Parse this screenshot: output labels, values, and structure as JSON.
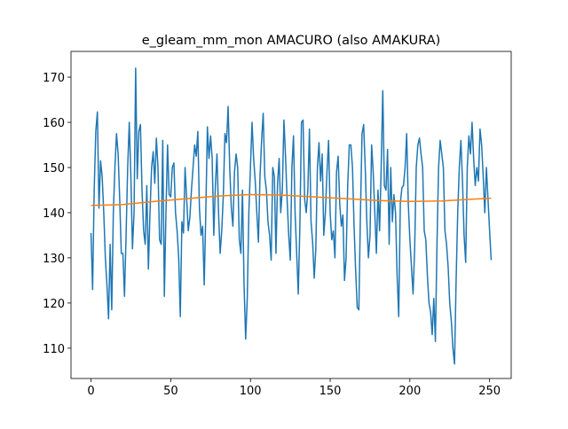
{
  "chart_data": {
    "type": "line",
    "title": "e_gleam_mm_mon AMACURO (also AMAKURA)",
    "xlim": [
      -12.55,
      263.55
    ],
    "ylim": [
      103.3,
      175.7
    ],
    "xticks": [
      0,
      50,
      100,
      150,
      200,
      250
    ],
    "yticks": [
      110,
      120,
      130,
      140,
      150,
      160,
      170
    ],
    "series": [
      {
        "color": "#1f77b4",
        "x": [
          0,
          1,
          2,
          3,
          4,
          5,
          6,
          7,
          8,
          9,
          10,
          11,
          12,
          13,
          14,
          15,
          16,
          17,
          18,
          19,
          20,
          21,
          22,
          23,
          24,
          25,
          26,
          27,
          28,
          29,
          30,
          31,
          32,
          33,
          34,
          35,
          36,
          37,
          38,
          39,
          40,
          41,
          42,
          43,
          44,
          45,
          46,
          47,
          48,
          49,
          50,
          51,
          52,
          53,
          54,
          55,
          56,
          57,
          58,
          59,
          60,
          61,
          62,
          63,
          64,
          65,
          66,
          67,
          68,
          69,
          70,
          71,
          72,
          73,
          74,
          75,
          76,
          77,
          78,
          79,
          80,
          81,
          82,
          83,
          84,
          85,
          86,
          87,
          88,
          89,
          90,
          91,
          92,
          93,
          94,
          95,
          96,
          97,
          98,
          99,
          100,
          101,
          102,
          103,
          104,
          105,
          106,
          107,
          108,
          109,
          110,
          111,
          112,
          113,
          114,
          115,
          116,
          117,
          118,
          119,
          120,
          121,
          122,
          123,
          124,
          125,
          126,
          127,
          128,
          129,
          130,
          131,
          132,
          133,
          134,
          135,
          136,
          137,
          138,
          139,
          140,
          141,
          142,
          143,
          144,
          145,
          146,
          147,
          148,
          149,
          150,
          151,
          152,
          153,
          154,
          155,
          156,
          157,
          158,
          159,
          160,
          161,
          162,
          163,
          164,
          165,
          166,
          167,
          168,
          169,
          170,
          171,
          172,
          173,
          174,
          175,
          176,
          177,
          178,
          179,
          180,
          181,
          182,
          183,
          184,
          185,
          186,
          187,
          188,
          189,
          190,
          191,
          192,
          193,
          194,
          195,
          196,
          197,
          198,
          199,
          200,
          201,
          202,
          203,
          204,
          205,
          206,
          207,
          208,
          209,
          210,
          211,
          212,
          213,
          214,
          215,
          216,
          217,
          218,
          219,
          220,
          221,
          222,
          223,
          224,
          225,
          226,
          227,
          228,
          229,
          230,
          231,
          232,
          233,
          234,
          235,
          236,
          237,
          238,
          239,
          240,
          241,
          242,
          243,
          244,
          245,
          246,
          247,
          248,
          249,
          250,
          251
        ],
        "values": [
          135.5,
          123,
          145,
          158,
          162.3,
          141,
          151.5,
          148,
          140,
          130,
          124,
          116.5,
          133,
          118.5,
          140,
          150,
          157.5,
          153,
          143,
          131,
          131,
          121.5,
          135,
          150,
          160,
          148,
          132,
          140,
          172,
          147.5,
          158,
          159.5,
          145,
          136,
          133,
          146,
          127.5,
          140,
          150,
          153.5,
          146.5,
          156.5,
          150,
          134,
          133,
          156,
          121.5,
          140,
          155,
          144,
          143.5,
          150,
          151,
          140,
          136,
          130,
          117,
          138,
          135.5,
          150,
          143,
          136,
          139,
          145,
          150,
          155,
          152.5,
          158,
          141,
          135,
          137,
          124,
          140,
          159,
          152,
          157,
          152,
          135,
          146,
          153,
          140,
          131,
          136,
          144,
          157.5,
          155.5,
          163.5,
          150,
          141,
          137,
          149,
          153,
          150,
          134,
          131,
          145,
          124,
          112,
          121,
          140,
          150,
          160,
          152,
          147,
          140,
          133.5,
          148,
          156,
          162,
          148,
          145,
          138,
          135,
          129.5,
          150,
          148,
          131,
          146.5,
          152,
          140,
          145,
          160.5,
          152.5,
          143,
          135,
          129.5,
          150,
          157,
          140,
          131,
          122,
          137,
          160,
          160.5,
          143,
          140,
          145,
          158.5,
          138,
          133.5,
          125.5,
          132,
          150,
          155.5,
          147,
          153,
          135,
          140,
          149,
          156,
          140,
          134,
          136,
          130,
          149,
          152.5,
          142,
          137,
          139.5,
          125,
          130,
          146,
          155,
          155,
          150,
          137,
          127,
          119,
          118.5,
          140,
          157.5,
          159.5,
          150,
          138,
          130,
          135,
          155,
          149,
          140,
          131,
          145,
          136,
          150,
          167,
          146,
          145,
          154,
          133,
          150,
          138,
          144,
          140,
          126,
          117,
          142,
          145.5,
          146,
          150,
          157.5,
          142,
          134,
          128,
          122,
          132,
          150,
          155,
          156.5,
          153,
          150,
          136,
          134,
          126,
          120,
          118,
          113,
          121,
          111.5,
          133,
          150,
          156,
          153,
          150,
          136,
          133,
          128,
          120,
          116,
          110,
          106.5,
          125,
          140,
          150,
          156,
          147,
          135,
          129,
          150,
          157,
          153,
          160,
          152,
          146,
          150,
          147,
          158.5,
          155,
          148,
          140,
          150,
          143,
          136,
          129.5
        ]
      },
      {
        "color": "#ff7f0e",
        "x": [
          0,
          20,
          40,
          60,
          80,
          100,
          120,
          140,
          160,
          180,
          200,
          220,
          240,
          251
        ],
        "values": [
          141.6,
          141.8,
          142.5,
          143.1,
          143.7,
          144.0,
          143.9,
          143.5,
          143.1,
          142.7,
          142.5,
          142.6,
          143.0,
          143.2
        ]
      }
    ]
  }
}
